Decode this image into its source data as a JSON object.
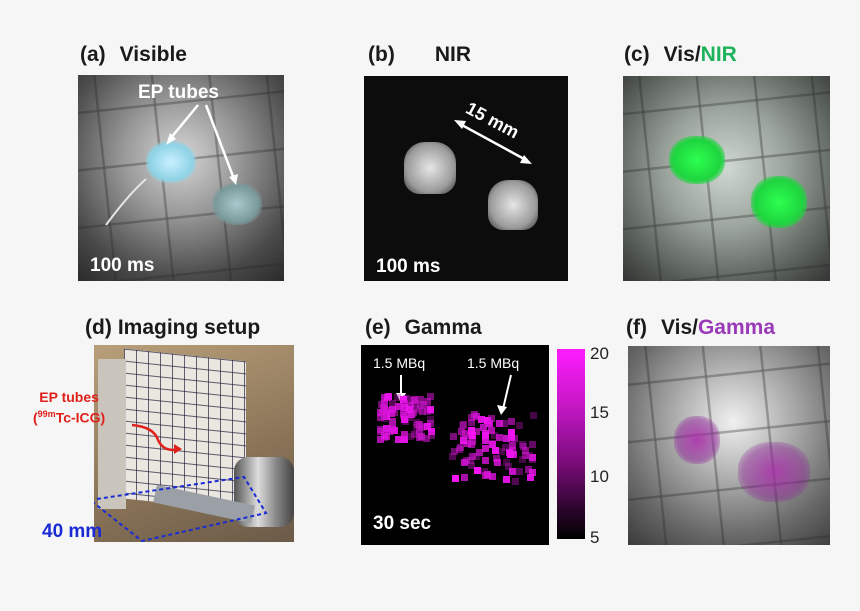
{
  "panels": {
    "a": {
      "tag": "(a)",
      "title": "Visible",
      "annotation": "EP tubes",
      "exposure": "100 ms"
    },
    "b": {
      "tag": "(b)",
      "title": "NIR",
      "distance": "15 mm",
      "exposure": "100 ms"
    },
    "c": {
      "tag": "(c)",
      "title_prefix": "Vis/",
      "title_highlight": "NIR",
      "highlight_color": "#1db35a"
    },
    "d": {
      "tag": "(d)",
      "title": "Imaging setup",
      "label_line1": "EP tubes",
      "label_line2_pre": "(",
      "label_sup": "99m",
      "label_line2_post": "Tc-ICG)",
      "scale": "40 mm",
      "label_color": "#e0201a",
      "scale_color": "#1a2bd6"
    },
    "e": {
      "tag": "(e)",
      "title": "Gamma",
      "activity_left": "1.5 MBq",
      "activity_right": "1.5 MBq",
      "duration": "30 sec",
      "colorbar_ticks": [
        "20",
        "15",
        "10",
        "5"
      ]
    },
    "f": {
      "tag": "(f)",
      "title_prefix": "Vis/",
      "title_highlight": "Gamma",
      "highlight_color": "#9b3ab8"
    }
  }
}
